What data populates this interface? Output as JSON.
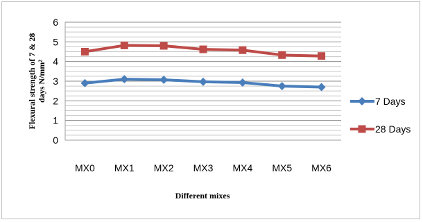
{
  "chart_data": {
    "type": "line",
    "categories": [
      "MX0",
      "MX1",
      "MX2",
      "MX3",
      "MX4",
      "MX5",
      "MX6"
    ],
    "series": [
      {
        "name": "7 Days",
        "values": [
          2.9,
          3.1,
          3.07,
          2.97,
          2.93,
          2.75,
          2.7
        ],
        "color": "#4a7ebb",
        "marker": "diamond"
      },
      {
        "name": "28 Days",
        "values": [
          4.5,
          4.82,
          4.8,
          4.62,
          4.58,
          4.33,
          4.28
        ],
        "color": "#be4b48",
        "marker": "square"
      }
    ],
    "xlabel": "Different mixes",
    "ylabel_line1": "Flexural strength of 7 & 28",
    "ylabel_line2": "days N/mm²",
    "ylim": [
      0,
      6
    ],
    "yticks": [
      0,
      1,
      2,
      3,
      4,
      5,
      6
    ],
    "grid": true,
    "legend": "right"
  }
}
